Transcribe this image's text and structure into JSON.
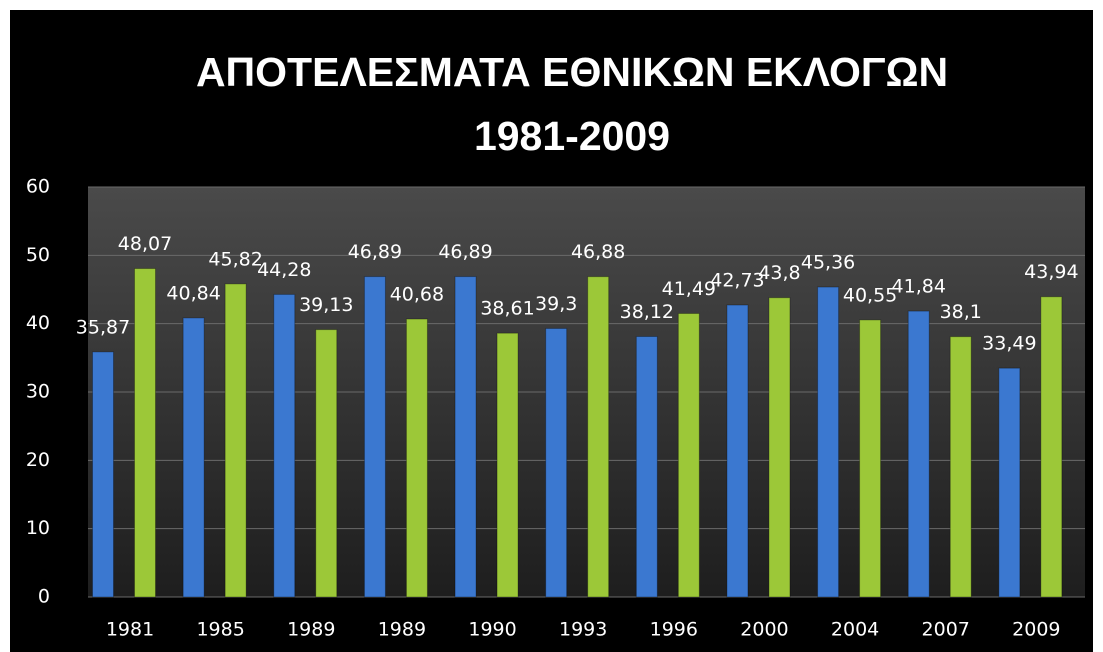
{
  "chart_data": {
    "type": "bar",
    "title": "ΑΠΟΤΕΛΕΣΜΑΤΑ ΕΘΝΙΚΩΝ ΕΚΛΟΓΩΝ 1981-2009",
    "categories": [
      "1981",
      "1985",
      "1989",
      "1989",
      "1990",
      "1993",
      "1996",
      "2000",
      "2004",
      "2007",
      "2009"
    ],
    "series": [
      {
        "color": "#3b78d0",
        "values": [
          35.87,
          40.84,
          44.28,
          46.89,
          46.89,
          39.3,
          38.12,
          42.73,
          45.36,
          41.84,
          33.49
        ],
        "value_labels": [
          "35,87",
          "40,84",
          "44,28",
          "46,89",
          "46,89",
          "39,3",
          "38,12",
          "42,73",
          "45,36",
          "41,84",
          "33,49"
        ]
      },
      {
        "color": "#9cc838",
        "values": [
          48.07,
          45.82,
          39.13,
          40.68,
          38.61,
          46.88,
          41.49,
          43.8,
          40.55,
          38.1,
          43.94
        ],
        "value_labels": [
          "48,07",
          "45,82",
          "39,13",
          "40,68",
          "38,61",
          "46,88",
          "41,49",
          "43,8",
          "40,55",
          "38,1",
          "43,94"
        ]
      }
    ],
    "ylim": [
      0,
      60
    ],
    "yticks": [
      0,
      10,
      20,
      30,
      40,
      50,
      60
    ],
    "grid": true
  }
}
